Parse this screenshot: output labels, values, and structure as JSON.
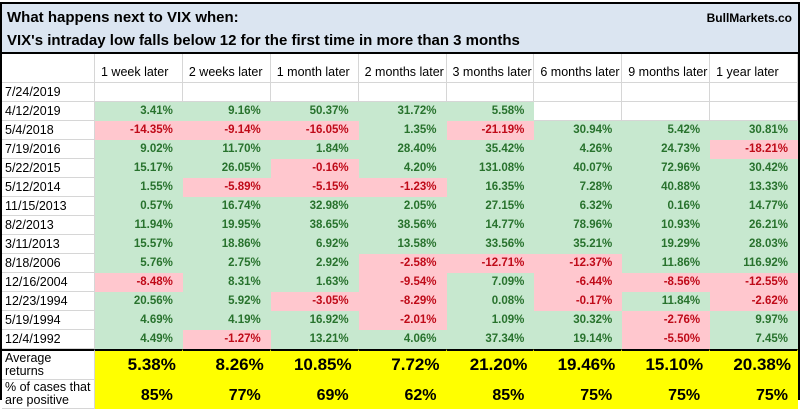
{
  "title": {
    "line1": "What happens next to VIX when:",
    "line2": "VIX's intraday low falls below 12 for the first time in more than 3 months",
    "brand": "BullMarkets.co"
  },
  "colors": {
    "header_bg": "#dbe5f1",
    "positive_bg": "#c7e8cf",
    "positive_text": "#28722d",
    "negative_bg": "#ffc7ce",
    "negative_text": "#bf0a18",
    "summary_bg": "#ffff00"
  },
  "table": {
    "columns": [
      "1 week later",
      "2 weeks later",
      "1 month later",
      "2 months later",
      "3 months later",
      "6 months later",
      "9 months later",
      "1 year later"
    ],
    "rows": [
      {
        "date": "7/24/2019",
        "cells": [
          [
            "",
            "w"
          ],
          [
            "",
            "w"
          ],
          [
            "",
            "w"
          ],
          [
            "",
            "w"
          ],
          [
            "",
            "w"
          ],
          [
            "",
            "w"
          ],
          [
            "",
            "w"
          ],
          [
            "",
            "w"
          ]
        ]
      },
      {
        "date": "4/12/2019",
        "cells": [
          [
            "3.41%",
            "g"
          ],
          [
            "9.16%",
            "g"
          ],
          [
            "50.37%",
            "g"
          ],
          [
            "31.72%",
            "g"
          ],
          [
            "5.58%",
            "g"
          ],
          [
            "",
            "w"
          ],
          [
            "",
            "w"
          ],
          [
            "",
            "w"
          ]
        ]
      },
      {
        "date": "5/4/2018",
        "cells": [
          [
            "-14.35%",
            "r"
          ],
          [
            "-9.14%",
            "r"
          ],
          [
            "-16.05%",
            "r"
          ],
          [
            "1.35%",
            "g"
          ],
          [
            "-21.19%",
            "r"
          ],
          [
            "30.94%",
            "g"
          ],
          [
            "5.42%",
            "g"
          ],
          [
            "30.81%",
            "g"
          ]
        ]
      },
      {
        "date": "7/19/2016",
        "cells": [
          [
            "9.02%",
            "g"
          ],
          [
            "11.70%",
            "g"
          ],
          [
            "1.84%",
            "g"
          ],
          [
            "28.40%",
            "g"
          ],
          [
            "35.42%",
            "g"
          ],
          [
            "4.26%",
            "g"
          ],
          [
            "24.73%",
            "g"
          ],
          [
            "-18.21%",
            "r"
          ]
        ]
      },
      {
        "date": "5/22/2015",
        "cells": [
          [
            "15.17%",
            "g"
          ],
          [
            "26.05%",
            "g"
          ],
          [
            "-0.16%",
            "r"
          ],
          [
            "4.20%",
            "g"
          ],
          [
            "131.08%",
            "g"
          ],
          [
            "40.07%",
            "g"
          ],
          [
            "72.96%",
            "g"
          ],
          [
            "30.42%",
            "g"
          ]
        ]
      },
      {
        "date": "5/12/2014",
        "cells": [
          [
            "1.55%",
            "g"
          ],
          [
            "-5.89%",
            "r"
          ],
          [
            "-5.15%",
            "r"
          ],
          [
            "-1.23%",
            "r"
          ],
          [
            "16.35%",
            "g"
          ],
          [
            "7.28%",
            "g"
          ],
          [
            "40.88%",
            "g"
          ],
          [
            "13.33%",
            "g"
          ]
        ]
      },
      {
        "date": "11/15/2013",
        "cells": [
          [
            "0.57%",
            "g"
          ],
          [
            "16.74%",
            "g"
          ],
          [
            "32.98%",
            "g"
          ],
          [
            "2.05%",
            "g"
          ],
          [
            "27.15%",
            "g"
          ],
          [
            "6.32%",
            "g"
          ],
          [
            "0.16%",
            "g"
          ],
          [
            "14.77%",
            "g"
          ]
        ]
      },
      {
        "date": "8/2/2013",
        "cells": [
          [
            "11.94%",
            "g"
          ],
          [
            "19.95%",
            "g"
          ],
          [
            "38.65%",
            "g"
          ],
          [
            "38.56%",
            "g"
          ],
          [
            "14.77%",
            "g"
          ],
          [
            "78.96%",
            "g"
          ],
          [
            "10.93%",
            "g"
          ],
          [
            "26.21%",
            "g"
          ]
        ]
      },
      {
        "date": "3/11/2013",
        "cells": [
          [
            "15.57%",
            "g"
          ],
          [
            "18.86%",
            "g"
          ],
          [
            "6.92%",
            "g"
          ],
          [
            "13.58%",
            "g"
          ],
          [
            "33.56%",
            "g"
          ],
          [
            "35.21%",
            "g"
          ],
          [
            "19.29%",
            "g"
          ],
          [
            "28.03%",
            "g"
          ]
        ]
      },
      {
        "date": "8/18/2006",
        "cells": [
          [
            "5.76%",
            "g"
          ],
          [
            "2.75%",
            "g"
          ],
          [
            "2.92%",
            "g"
          ],
          [
            "-2.58%",
            "r"
          ],
          [
            "-12.71%",
            "r"
          ],
          [
            "-12.37%",
            "r"
          ],
          [
            "11.86%",
            "g"
          ],
          [
            "116.92%",
            "g"
          ]
        ]
      },
      {
        "date": "12/16/2004",
        "cells": [
          [
            "-8.48%",
            "r"
          ],
          [
            "8.31%",
            "g"
          ],
          [
            "1.63%",
            "g"
          ],
          [
            "-9.54%",
            "r"
          ],
          [
            "7.09%",
            "g"
          ],
          [
            "-6.44%",
            "r"
          ],
          [
            "-8.56%",
            "r"
          ],
          [
            "-12.55%",
            "r"
          ]
        ]
      },
      {
        "date": "12/23/1994",
        "cells": [
          [
            "20.56%",
            "g"
          ],
          [
            "5.92%",
            "g"
          ],
          [
            "-3.05%",
            "r"
          ],
          [
            "-8.29%",
            "r"
          ],
          [
            "0.08%",
            "g"
          ],
          [
            "-0.17%",
            "r"
          ],
          [
            "11.84%",
            "g"
          ],
          [
            "-2.62%",
            "r"
          ]
        ]
      },
      {
        "date": "5/19/1994",
        "cells": [
          [
            "4.69%",
            "g"
          ],
          [
            "4.19%",
            "g"
          ],
          [
            "16.92%",
            "g"
          ],
          [
            "-2.01%",
            "r"
          ],
          [
            "1.09%",
            "g"
          ],
          [
            "30.32%",
            "g"
          ],
          [
            "-2.76%",
            "r"
          ],
          [
            "9.97%",
            "g"
          ]
        ]
      },
      {
        "date": "12/4/1992",
        "cells": [
          [
            "4.49%",
            "g"
          ],
          [
            "-1.27%",
            "r"
          ],
          [
            "13.21%",
            "g"
          ],
          [
            "4.06%",
            "g"
          ],
          [
            "37.34%",
            "g"
          ],
          [
            "19.14%",
            "g"
          ],
          [
            "-5.50%",
            "r"
          ],
          [
            "7.45%",
            "g"
          ]
        ]
      }
    ],
    "summary": [
      {
        "label": "Average returns",
        "values": [
          "5.38%",
          "8.26%",
          "10.85%",
          "7.72%",
          "21.20%",
          "19.46%",
          "15.10%",
          "20.38%"
        ]
      },
      {
        "label": "% of cases that\nare positive",
        "values": [
          "85%",
          "77%",
          "69%",
          "62%",
          "85%",
          "75%",
          "75%",
          "75%"
        ]
      }
    ]
  }
}
